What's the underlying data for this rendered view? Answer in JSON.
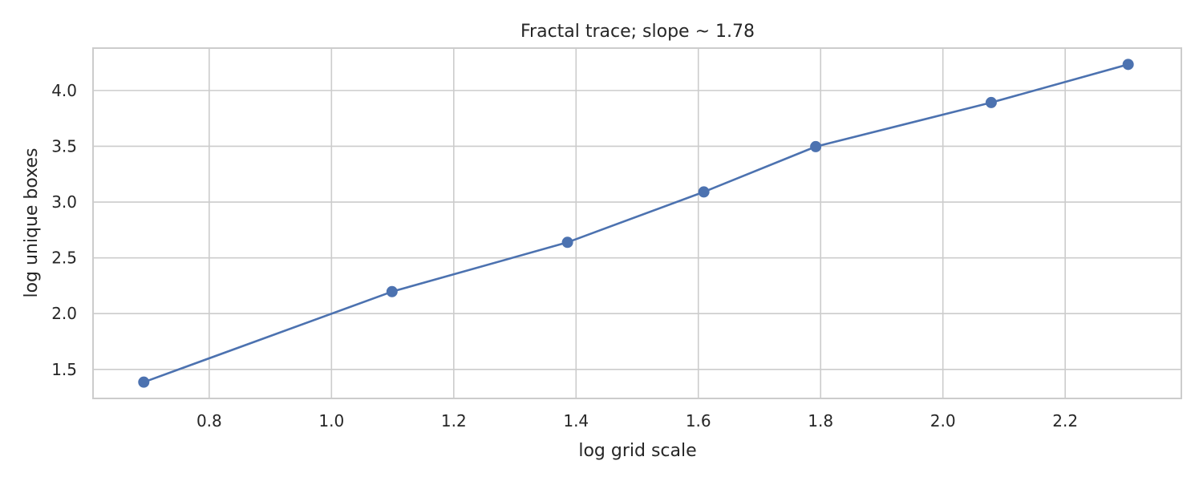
{
  "chart_data": {
    "type": "line",
    "title": "Fractal trace; slope ~ 1.78",
    "xlabel": "log grid scale",
    "ylabel": "log unique boxes",
    "xlim": [
      0.61,
      2.39
    ],
    "ylim": [
      1.24,
      4.38
    ],
    "xticks": [
      0.8,
      1.0,
      1.2,
      1.4,
      1.6,
      1.8,
      2.0,
      2.2
    ],
    "xtick_labels": [
      "0.8",
      "1.0",
      "1.2",
      "1.4",
      "1.6",
      "1.8",
      "2.0",
      "2.2"
    ],
    "yticks": [
      1.5,
      2.0,
      2.5,
      3.0,
      3.5,
      4.0
    ],
    "ytick_labels": [
      "1.5",
      "2.0",
      "2.5",
      "3.0",
      "3.5",
      "4.0"
    ],
    "grid": true,
    "series": [
      {
        "color": "#4c72b0",
        "x": [
          0.693,
          1.099,
          1.386,
          1.609,
          1.792,
          2.079,
          2.303
        ],
        "y": [
          1.386,
          2.197,
          2.639,
          3.091,
          3.497,
          3.892,
          4.234
        ]
      }
    ]
  }
}
